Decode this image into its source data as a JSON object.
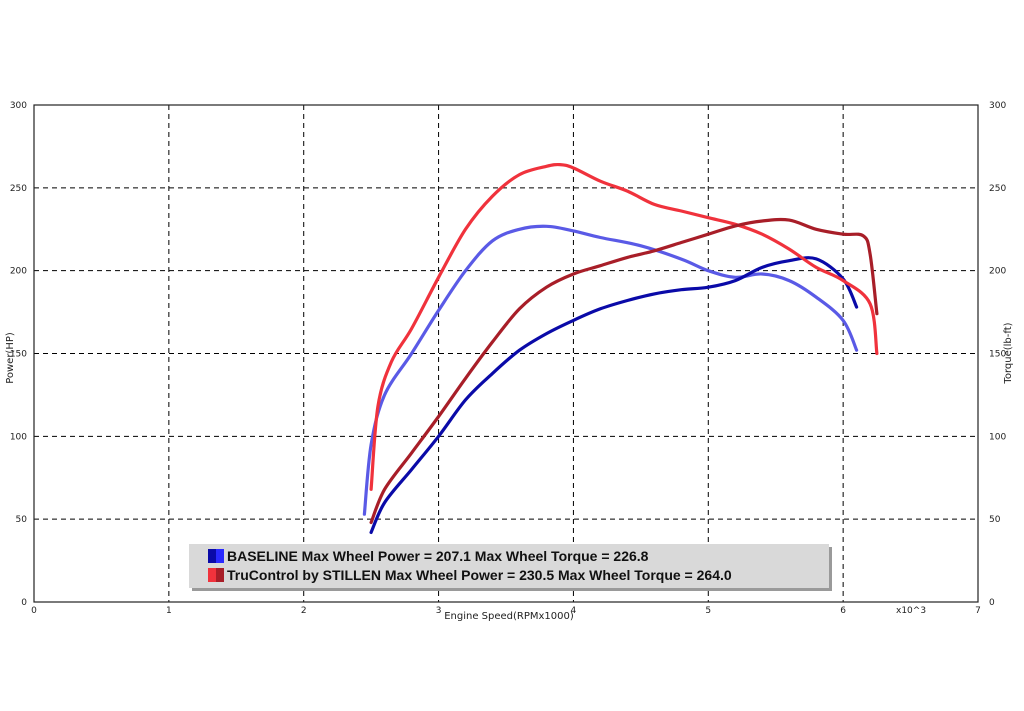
{
  "chart_data": {
    "type": "line",
    "xlabel": "Engine Speed(RPMx1000)",
    "x_multiplier": "x10^3",
    "ylabel_left": "Power(HP)",
    "ylabel_right": "Torque(lb-ft)",
    "xlim": [
      0,
      7
    ],
    "ylim": [
      0,
      300
    ],
    "x_ticks": [
      "0",
      "1",
      "2",
      "3",
      "4",
      "5",
      "6",
      "7"
    ],
    "y_ticks": [
      "0",
      "50",
      "100",
      "150",
      "200",
      "250",
      "300"
    ],
    "grid": true,
    "legend_position": "bottom-center",
    "colors": {
      "baseline_power": "#0a0aa8",
      "baseline_torque": "#5a5ae6",
      "stillen_power": "#a81e28",
      "stillen_torque": "#f0323c",
      "legend_bg": "#d9d9d9"
    },
    "legend": [
      {
        "text": "BASELINE Max Wheel Power = 207.1 Max Wheel Torque = 226.8",
        "color_a": "#0a0aa8",
        "color_b": "#2a2aff"
      },
      {
        "text": "TruControl by STILLEN Max Wheel Power = 230.5 Max Wheel Torque = 264.0",
        "color_a": "#f0323c",
        "color_b": "#a81e28"
      }
    ],
    "series": [
      {
        "key": "baseline_torque",
        "x": [
          2.45,
          2.5,
          2.6,
          2.8,
          3.0,
          3.2,
          3.4,
          3.6,
          3.8,
          4.0,
          4.2,
          4.5,
          4.8,
          5.0,
          5.2,
          5.4,
          5.6,
          5.8,
          6.0,
          6.1
        ],
        "y": [
          53,
          95,
          125,
          150,
          176,
          200,
          218,
          225,
          226.8,
          224,
          220,
          215,
          207,
          200,
          196,
          198,
          194,
          184,
          170,
          152
        ]
      },
      {
        "key": "baseline_power",
        "x": [
          2.5,
          2.6,
          2.8,
          3.0,
          3.2,
          3.4,
          3.6,
          3.8,
          4.0,
          4.2,
          4.4,
          4.6,
          4.8,
          5.0,
          5.2,
          5.4,
          5.6,
          5.8,
          6.0,
          6.1
        ],
        "y": [
          42,
          60,
          80,
          100,
          122,
          138,
          152,
          162,
          170,
          177,
          182,
          186,
          188.5,
          190,
          194,
          202,
          206,
          207.1,
          195,
          178
        ]
      },
      {
        "key": "stillen_torque",
        "x": [
          2.5,
          2.55,
          2.65,
          2.8,
          3.0,
          3.2,
          3.4,
          3.6,
          3.8,
          3.9,
          4.0,
          4.2,
          4.4,
          4.6,
          4.8,
          5.0,
          5.2,
          5.4,
          5.6,
          5.8,
          6.0,
          6.2,
          6.25
        ],
        "y": [
          68,
          118,
          145,
          165,
          196,
          225,
          245,
          258,
          263,
          264.0,
          262,
          254,
          248,
          240,
          236,
          232,
          228,
          222,
          213,
          202,
          194,
          180,
          150
        ]
      },
      {
        "key": "stillen_power",
        "x": [
          2.5,
          2.6,
          2.8,
          3.0,
          3.2,
          3.4,
          3.6,
          3.8,
          4.0,
          4.2,
          4.4,
          4.6,
          4.8,
          5.0,
          5.2,
          5.4,
          5.6,
          5.8,
          6.0,
          6.15,
          6.2,
          6.25
        ],
        "y": [
          48,
          68,
          90,
          112,
          135,
          157,
          177,
          190,
          198,
          203,
          208,
          212,
          217,
          222,
          227,
          230,
          230.5,
          225,
          222,
          221,
          210,
          174
        ]
      }
    ]
  }
}
